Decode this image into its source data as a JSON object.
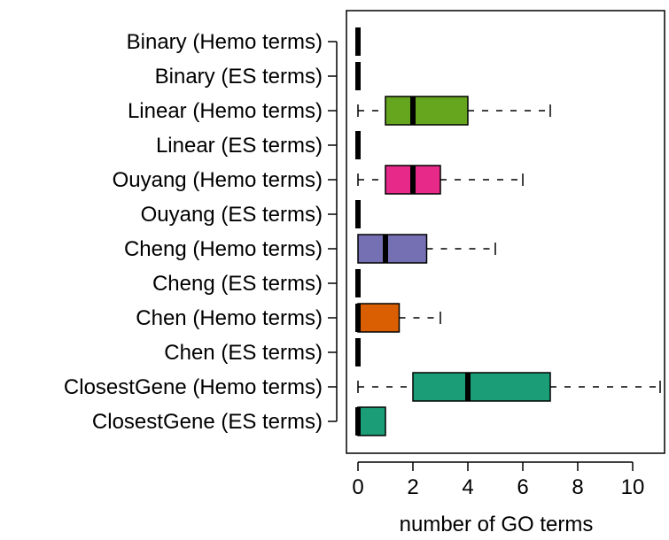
{
  "chart_data": {
    "type": "boxplot",
    "orientation": "horizontal",
    "title": "",
    "xlabel": "number of GO terms",
    "ylabel": "",
    "xlim": [
      -0.4,
      11.2
    ],
    "xticks": [
      0,
      2,
      4,
      6,
      8,
      10
    ],
    "grid": false,
    "categories": [
      "Binary (Hemo terms)",
      "Binary (ES terms)",
      "Linear (Hemo terms)",
      "Linear (ES terms)",
      "Ouyang (Hemo terms)",
      "Ouyang (ES terms)",
      "Cheng (Hemo terms)",
      "Cheng (ES terms)",
      "Chen (Hemo terms)",
      "Chen (ES terms)",
      "ClosestGene (Hemo terms)",
      "ClosestGene (ES terms)"
    ],
    "boxes": [
      {
        "min": 0,
        "q1": 0,
        "median": 0,
        "q3": 0,
        "max": 0,
        "color": "#000000"
      },
      {
        "min": 0,
        "q1": 0,
        "median": 0,
        "q3": 0,
        "max": 0,
        "color": "#000000"
      },
      {
        "min": 0,
        "q1": 1,
        "median": 2,
        "q3": 4,
        "max": 7,
        "color": "#66a61e"
      },
      {
        "min": 0,
        "q1": 0,
        "median": 0,
        "q3": 0,
        "max": 0,
        "color": "#000000"
      },
      {
        "min": 0,
        "q1": 1,
        "median": 2,
        "q3": 3,
        "max": 6,
        "color": "#e7298a"
      },
      {
        "min": 0,
        "q1": 0,
        "median": 0,
        "q3": 0,
        "max": 0,
        "color": "#000000"
      },
      {
        "min": 0,
        "q1": 0,
        "median": 1,
        "q3": 2.5,
        "max": 5,
        "color": "#7570b3"
      },
      {
        "min": 0,
        "q1": 0,
        "median": 0,
        "q3": 0,
        "max": 0,
        "color": "#000000"
      },
      {
        "min": 0,
        "q1": 0,
        "median": 0,
        "q3": 1.5,
        "max": 3,
        "color": "#d95f02"
      },
      {
        "min": 0,
        "q1": 0,
        "median": 0,
        "q3": 0,
        "max": 0,
        "color": "#000000"
      },
      {
        "min": 0,
        "q1": 2,
        "median": 4,
        "q3": 7,
        "max": 11,
        "color": "#1b9e77"
      },
      {
        "min": 0,
        "q1": 0,
        "median": 0,
        "q3": 1,
        "max": 1,
        "color": "#1b9e77"
      }
    ]
  }
}
